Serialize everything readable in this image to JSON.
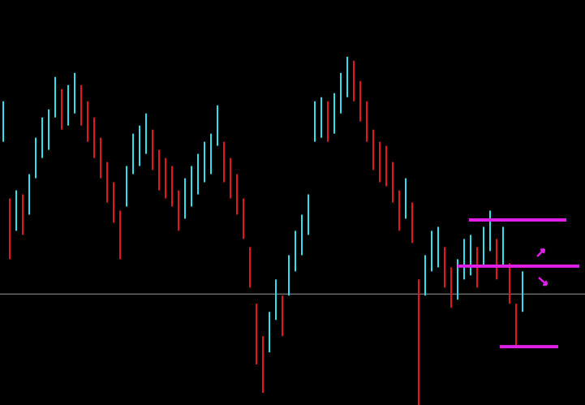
{
  "chart_data": {
    "type": "range-bar",
    "ylim": [
      0,
      100
    ],
    "high": [
      75,
      51,
      53,
      52,
      57,
      66,
      71,
      73,
      81,
      78,
      79,
      82,
      79,
      75,
      71,
      66,
      60,
      55,
      48,
      59,
      67,
      69,
      72,
      68,
      63,
      61,
      59,
      53,
      56,
      59,
      62,
      65,
      67,
      74,
      65,
      61,
      57,
      51,
      39,
      25,
      17,
      23,
      31,
      27,
      37,
      43,
      47,
      52,
      75,
      76,
      75,
      77,
      82,
      86,
      85,
      80,
      75,
      68,
      65,
      64,
      60,
      53,
      56,
      50,
      31,
      37,
      43,
      44,
      39,
      34,
      36,
      41,
      42,
      39,
      44,
      48,
      41,
      44,
      35,
      25,
      33
    ],
    "low": [
      65,
      36,
      43,
      42,
      47,
      56,
      61,
      63,
      71,
      68,
      69,
      72,
      69,
      65,
      61,
      56,
      50,
      45,
      36,
      49,
      57,
      59,
      62,
      58,
      53,
      51,
      49,
      43,
      46,
      49,
      52,
      55,
      57,
      64,
      55,
      51,
      47,
      41,
      29,
      10,
      3,
      13,
      21,
      17,
      27,
      33,
      37,
      42,
      65,
      66,
      65,
      67,
      72,
      76,
      75,
      70,
      65,
      58,
      55,
      54,
      50,
      43,
      46,
      40,
      0,
      27,
      33,
      34,
      29,
      24,
      26,
      31,
      32,
      29,
      34,
      38,
      31,
      34,
      25,
      14,
      23
    ],
    "up_color": "#2fe0e8",
    "down_color": "#e8141c",
    "reference_line": 27.4,
    "reference_color": "#9a9a9a",
    "levels": [
      {
        "value": 45.7,
        "color": "#e020e8"
      },
      {
        "value": 34.3,
        "color": "#e020e8"
      },
      {
        "value": 14.4,
        "color": "#e020e8"
      }
    ]
  }
}
